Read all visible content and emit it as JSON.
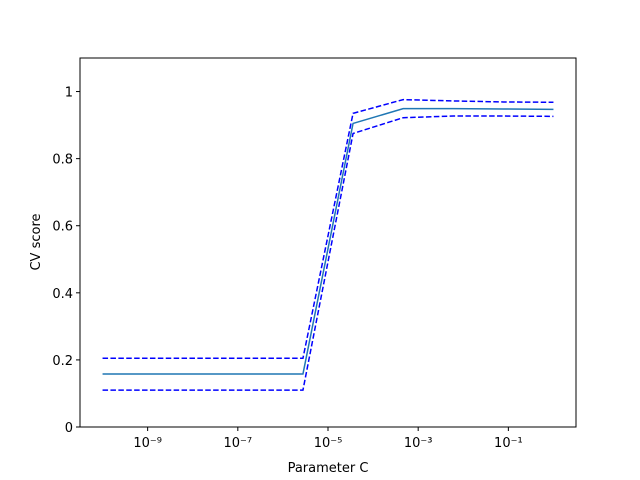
{
  "chart_data": {
    "type": "line",
    "xlabel": "Parameter C",
    "ylabel": "CV score",
    "x": [
      1e-10,
      1.291549665e-09,
      1.668100537e-08,
      2.15443469e-07,
      2.782559402e-06,
      3.593813664e-05,
      0.0004641588834,
      0.005994842503,
      0.07742636827,
      1
    ],
    "series": [
      {
        "color": "#1f77b4",
        "style": "solid",
        "values": [
          0.158,
          0.158,
          0.158,
          0.158,
          0.158,
          0.905,
          0.949,
          0.949,
          0.948,
          0.947
        ]
      },
      {
        "color": "#0000ff",
        "style": "dashed",
        "values": [
          0.205,
          0.205,
          0.205,
          0.205,
          0.205,
          0.935,
          0.976,
          0.972,
          0.969,
          0.968
        ]
      },
      {
        "color": "#0000ff",
        "style": "dashed",
        "values": [
          0.11,
          0.11,
          0.11,
          0.11,
          0.11,
          0.875,
          0.922,
          0.927,
          0.927,
          0.926
        ]
      }
    ],
    "xscale": "log",
    "xlim": [
      3.16227766e-11,
      3.16227766
    ],
    "xticks": [
      {
        "value": 1e-09,
        "label": "10⁻⁹"
      },
      {
        "value": 1e-07,
        "label": "10⁻⁷"
      },
      {
        "value": 1e-05,
        "label": "10⁻⁵"
      },
      {
        "value": 0.001,
        "label": "10⁻³"
      },
      {
        "value": 0.1,
        "label": "10⁻¹"
      }
    ],
    "ylim": [
      0,
      1.1
    ],
    "yticks": [
      0,
      0.2,
      0.4,
      0.6,
      0.8,
      1
    ]
  }
}
